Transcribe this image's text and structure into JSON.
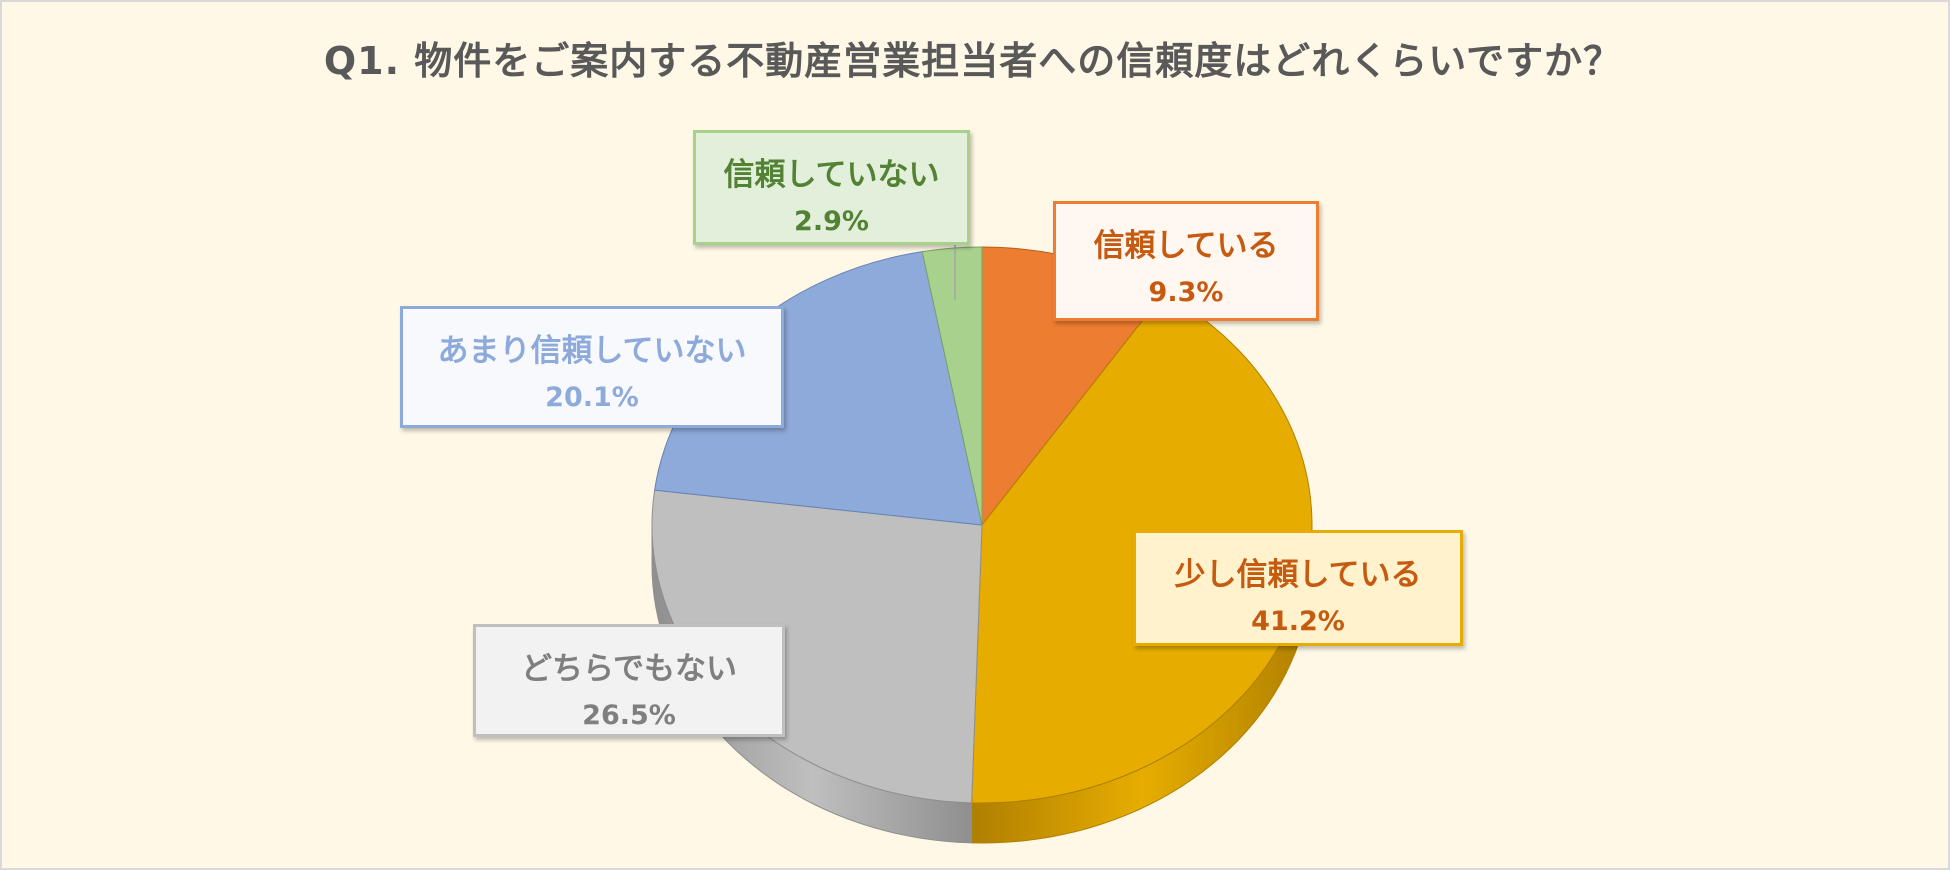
{
  "title": "Q1. 物件をご案内する不動産営業担当者への信頼度はどれくらいですか？",
  "chart_data": {
    "type": "pie",
    "title": "Q1. 物件をご案内する不動産営業担当者への信頼度はどれくらいですか？",
    "legend": "none",
    "slices": [
      {
        "label": "信頼している",
        "value": 9.3,
        "display": "9.3%",
        "color": "#ed7d31",
        "dark": "#b85d1f",
        "text_color": "#c55a11",
        "box_bg": "#fff7f0"
      },
      {
        "label": "少し信頼している",
        "value": 41.2,
        "display": "41.2%",
        "color": "#e6ad00",
        "dark": "#b07f00",
        "text_color": "#c55a11",
        "box_bg": "#fff2cc"
      },
      {
        "label": "どちらでもない",
        "value": 26.5,
        "display": "26.5%",
        "color": "#bfbfbf",
        "dark": "#8f8f8f",
        "text_color": "#7f7f7f",
        "box_bg": "#f2f2f2"
      },
      {
        "label": "あまり信頼していない",
        "value": 20.1,
        "display": "20.1%",
        "color": "#8eaadb",
        "dark": "#6783b5",
        "text_color": "#8eaadb",
        "box_bg": "#f7f9fd"
      },
      {
        "label": "信頼していない",
        "value": 2.9,
        "display": "2.9%",
        "color": "#a9d18e",
        "dark": "#7aa35f",
        "text_color": "#548235",
        "box_bg": "#e2efda"
      }
    ]
  }
}
